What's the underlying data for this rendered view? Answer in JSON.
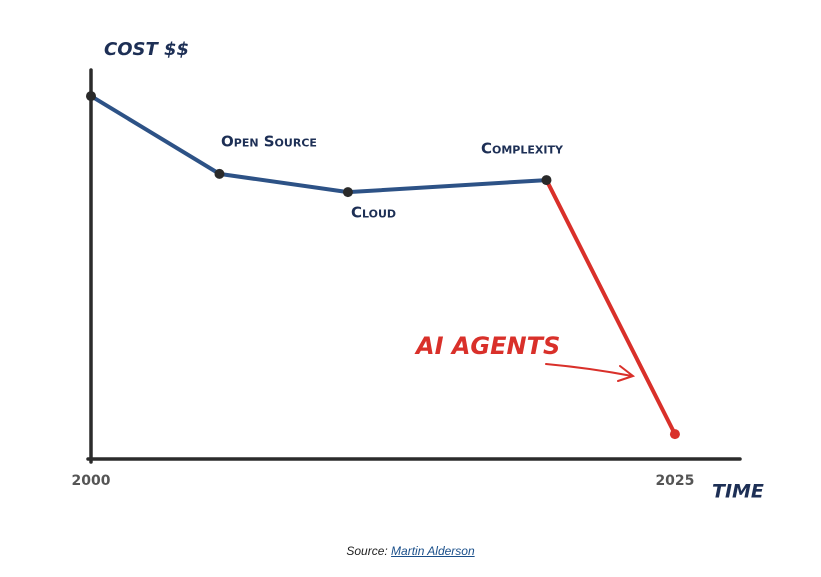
{
  "chart_data": {
    "type": "line",
    "y_label": "COST $$",
    "x_label": "TIME",
    "x": [
      2000,
      2005.5,
      2011,
      2019.5,
      2025
    ],
    "series": [
      {
        "color": "#2d5286",
        "values": [
          93.3,
          73.3,
          68.6,
          71.7,
          null
        ]
      },
      {
        "color": "#d9302a",
        "values": [
          null,
          null,
          null,
          71.7,
          6.4
        ]
      }
    ],
    "xlim": [
      2000,
      2028
    ],
    "xticks": [
      2000,
      2025
    ],
    "ylim": [
      0,
      100
    ],
    "annotations": [
      "Open Source",
      "Cloud",
      "Complexity",
      "AI AGENTS"
    ]
  },
  "source": {
    "prefix": "Source:",
    "link": "Martin Alderson"
  }
}
